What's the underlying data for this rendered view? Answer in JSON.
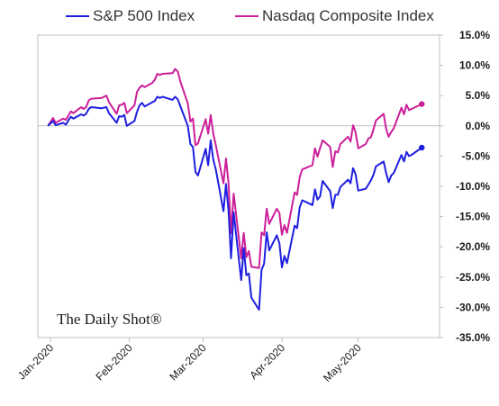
{
  "legend": {
    "sp500": "S&P 500 Index",
    "nasdaq": "Nasdaq Composite Index"
  },
  "watermark": "The Daily Shot®",
  "colors": {
    "sp500": "#1f1fe0",
    "nasdaq": "#cc1f99"
  },
  "chart_data": {
    "type": "line",
    "xlabel": "",
    "ylabel": "",
    "ylim": [
      -35,
      15
    ],
    "y_ticks": [
      15,
      10,
      5,
      0,
      -5,
      -10,
      -15,
      -20,
      -25,
      -30,
      -35
    ],
    "y_tick_labels": [
      "15.0%",
      "10.0%",
      "5.0%",
      "0.0%",
      "-5.0%",
      "-10.0%",
      "-15.0%",
      "-20.0%",
      "-25.0%",
      "-30.0%",
      "-35.0%"
    ],
    "x_range": [
      "2019-12-27",
      "2020-06-02"
    ],
    "x_ticks": [
      "2020-01-01",
      "2020-02-01",
      "2020-03-01",
      "2020-04-01",
      "2020-05-01"
    ],
    "x_tick_labels": [
      "Jan-2020",
      "Feb-2020",
      "Mar-2020",
      "Apr-2020",
      "May-2020"
    ],
    "grid": false,
    "legend_position": "top",
    "series": [
      {
        "name": "S&P 500 Index",
        "x": [
          "2019-12-31",
          "2020-01-02",
          "2020-01-03",
          "2020-01-06",
          "2020-01-07",
          "2020-01-08",
          "2020-01-09",
          "2020-01-10",
          "2020-01-13",
          "2020-01-14",
          "2020-01-15",
          "2020-01-16",
          "2020-01-17",
          "2020-01-21",
          "2020-01-22",
          "2020-01-23",
          "2020-01-24",
          "2020-01-27",
          "2020-01-28",
          "2020-01-29",
          "2020-01-30",
          "2020-01-31",
          "2020-02-03",
          "2020-02-04",
          "2020-02-05",
          "2020-02-06",
          "2020-02-07",
          "2020-02-10",
          "2020-02-11",
          "2020-02-12",
          "2020-02-13",
          "2020-02-14",
          "2020-02-18",
          "2020-02-19",
          "2020-02-20",
          "2020-02-21",
          "2020-02-24",
          "2020-02-25",
          "2020-02-26",
          "2020-02-27",
          "2020-02-28",
          "2020-03-02",
          "2020-03-03",
          "2020-03-04",
          "2020-03-05",
          "2020-03-06",
          "2020-03-09",
          "2020-03-10",
          "2020-03-11",
          "2020-03-12",
          "2020-03-13",
          "2020-03-16",
          "2020-03-17",
          "2020-03-18",
          "2020-03-19",
          "2020-03-20",
          "2020-03-23",
          "2020-03-24",
          "2020-03-25",
          "2020-03-26",
          "2020-03-27",
          "2020-03-30",
          "2020-03-31",
          "2020-04-01",
          "2020-04-02",
          "2020-04-03",
          "2020-04-06",
          "2020-04-07",
          "2020-04-08",
          "2020-04-09",
          "2020-04-13",
          "2020-04-14",
          "2020-04-15",
          "2020-04-16",
          "2020-04-17",
          "2020-04-20",
          "2020-04-21",
          "2020-04-22",
          "2020-04-23",
          "2020-04-24",
          "2020-04-27",
          "2020-04-28",
          "2020-04-29",
          "2020-04-30",
          "2020-05-01",
          "2020-05-04",
          "2020-05-05",
          "2020-05-06",
          "2020-05-07",
          "2020-05-08",
          "2020-05-11",
          "2020-05-12",
          "2020-05-13",
          "2020-05-14",
          "2020-05-15",
          "2020-05-18",
          "2020-05-19",
          "2020-05-20",
          "2020-05-21",
          "2020-05-22",
          "2020-05-26"
        ],
        "values": [
          0.0,
          0.8,
          0.1,
          0.5,
          0.2,
          0.9,
          1.5,
          1.2,
          1.9,
          1.7,
          2.0,
          2.8,
          3.1,
          2.9,
          3.0,
          3.1,
          2.1,
          0.5,
          1.6,
          1.5,
          1.8,
          0.0,
          0.8,
          2.3,
          3.4,
          3.8,
          3.2,
          3.9,
          4.1,
          4.8,
          4.6,
          4.8,
          4.3,
          4.8,
          4.4,
          3.3,
          0.0,
          -3.0,
          -3.5,
          -7.6,
          -8.2,
          -3.8,
          -6.5,
          -2.4,
          -5.6,
          -7.2,
          -14.1,
          -9.6,
          -14.0,
          -21.9,
          -14.3,
          -25.5,
          -20.2,
          -24.7,
          -24.4,
          -28.4,
          -30.4,
          -23.8,
          -22.8,
          -17.6,
          -20.6,
          -18.1,
          -19.4,
          -23.4,
          -21.5,
          -22.7,
          -16.5,
          -16.9,
          -13.5,
          -12.3,
          -13.1,
          -10.5,
          -12.2,
          -11.7,
          -9.1,
          -10.8,
          -13.6,
          -11.4,
          -11.4,
          -10.1,
          -8.9,
          -9.5,
          -7.0,
          -8.0,
          -10.7,
          -10.4,
          -9.7,
          -9.0,
          -8.1,
          -6.7,
          -5.9,
          -7.8,
          -9.3,
          -8.2,
          -7.8,
          -4.8,
          -5.9,
          -4.3,
          -5.0,
          -4.8,
          -3.6
        ],
        "marker_last": true
      },
      {
        "name": "Nasdaq Composite Index",
        "x": [
          "2019-12-31",
          "2020-01-02",
          "2020-01-03",
          "2020-01-06",
          "2020-01-07",
          "2020-01-08",
          "2020-01-09",
          "2020-01-10",
          "2020-01-13",
          "2020-01-14",
          "2020-01-15",
          "2020-01-16",
          "2020-01-17",
          "2020-01-21",
          "2020-01-22",
          "2020-01-23",
          "2020-01-24",
          "2020-01-27",
          "2020-01-28",
          "2020-01-29",
          "2020-01-30",
          "2020-01-31",
          "2020-02-03",
          "2020-02-04",
          "2020-02-05",
          "2020-02-06",
          "2020-02-07",
          "2020-02-10",
          "2020-02-11",
          "2020-02-12",
          "2020-02-13",
          "2020-02-14",
          "2020-02-18",
          "2020-02-19",
          "2020-02-20",
          "2020-02-21",
          "2020-02-24",
          "2020-02-25",
          "2020-02-26",
          "2020-02-27",
          "2020-02-28",
          "2020-03-02",
          "2020-03-03",
          "2020-03-04",
          "2020-03-05",
          "2020-03-06",
          "2020-03-09",
          "2020-03-10",
          "2020-03-11",
          "2020-03-12",
          "2020-03-13",
          "2020-03-16",
          "2020-03-17",
          "2020-03-18",
          "2020-03-19",
          "2020-03-20",
          "2020-03-23",
          "2020-03-24",
          "2020-03-25",
          "2020-03-26",
          "2020-03-27",
          "2020-03-30",
          "2020-03-31",
          "2020-04-01",
          "2020-04-02",
          "2020-04-03",
          "2020-04-06",
          "2020-04-07",
          "2020-04-08",
          "2020-04-09",
          "2020-04-13",
          "2020-04-14",
          "2020-04-15",
          "2020-04-16",
          "2020-04-17",
          "2020-04-20",
          "2020-04-21",
          "2020-04-22",
          "2020-04-23",
          "2020-04-24",
          "2020-04-27",
          "2020-04-28",
          "2020-04-29",
          "2020-04-30",
          "2020-05-01",
          "2020-05-04",
          "2020-05-05",
          "2020-05-06",
          "2020-05-07",
          "2020-05-08",
          "2020-05-11",
          "2020-05-12",
          "2020-05-13",
          "2020-05-14",
          "2020-05-15",
          "2020-05-18",
          "2020-05-19",
          "2020-05-20",
          "2020-05-21",
          "2020-05-22",
          "2020-05-26"
        ],
        "values": [
          0.0,
          1.3,
          0.5,
          1.2,
          1.0,
          1.7,
          2.4,
          2.1,
          3.1,
          2.8,
          3.1,
          4.2,
          4.5,
          4.6,
          4.8,
          5.0,
          3.9,
          2.0,
          3.4,
          3.5,
          3.8,
          2.1,
          3.4,
          5.6,
          6.3,
          6.7,
          6.4,
          7.1,
          7.6,
          8.6,
          8.4,
          8.6,
          8.7,
          9.4,
          9.0,
          7.4,
          3.7,
          0.7,
          1.2,
          -3.2,
          -2.9,
          1.1,
          -1.3,
          1.8,
          -1.3,
          -3.2,
          -9.5,
          -5.4,
          -9.4,
          -17.8,
          -11.2,
          -21.9,
          -17.7,
          -21.7,
          -20.7,
          -23.3,
          -23.5,
          -17.6,
          -18.1,
          -13.7,
          -16.2,
          -13.7,
          -14.4,
          -18.0,
          -16.4,
          -17.7,
          -11.0,
          -11.4,
          -8.5,
          -7.2,
          -6.5,
          -3.7,
          -5.1,
          -3.7,
          -2.4,
          -3.5,
          -6.8,
          -4.2,
          -4.4,
          -3.0,
          -1.8,
          -2.6,
          0.1,
          -1.1,
          -3.7,
          -3.0,
          -2.1,
          -1.9,
          -0.6,
          0.9,
          2.0,
          -0.5,
          -1.8,
          -1.0,
          -0.4,
          3.0,
          1.9,
          3.5,
          2.6,
          2.8,
          3.6
        ],
        "marker_last": true
      }
    ]
  }
}
